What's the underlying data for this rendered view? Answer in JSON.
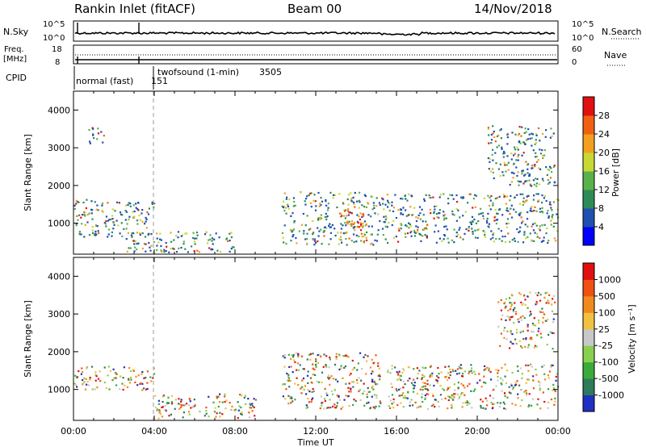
{
  "header": {
    "station": "Rankin Inlet (fitACF)",
    "beam": "Beam 00",
    "date": "14/Nov/2018"
  },
  "nsky_panel": {
    "left_label": "N.Sky",
    "right_label": "N.Search",
    "left_ticks": [
      "10^5",
      "10^0"
    ],
    "right_ticks": [
      "10^5",
      "10^0"
    ]
  },
  "freq_panel": {
    "left_label_1": "Freq.",
    "left_label_2": "[MHz]",
    "left_ticks": [
      "18",
      "8"
    ],
    "right_label": "Nave",
    "right_ticks": [
      "60",
      "0"
    ]
  },
  "cpid_panel": {
    "label": "CPID",
    "modes": [
      {
        "name": "normal (fast)",
        "id": "151",
        "start_hour": 0.0
      },
      {
        "name": "twofsound (1-min)",
        "id": "3505",
        "start_hour": 3.95
      }
    ]
  },
  "chart_data": [
    {
      "type": "heatmap",
      "name": "power",
      "ylabel": "Slant Range [km]",
      "y_ticks": [
        "4000",
        "3000",
        "2000",
        "1000"
      ],
      "ylim": [
        180,
        4500
      ],
      "colorbar_label": "Power [dB]",
      "colorbar_ticks": [
        "28",
        "24",
        "20",
        "16",
        "12",
        "8",
        "4"
      ],
      "colorbar_colors": [
        "#0000ff",
        "#1f4fb0",
        "#2e8b57",
        "#5ab04a",
        "#c8d832",
        "#f2a020",
        "#f06010",
        "#e01010"
      ],
      "scatter_regions": [
        {
          "x0": 0.0,
          "x1": 4.0,
          "y0": 650,
          "y1": 1650
        },
        {
          "x0": 0.7,
          "x1": 1.5,
          "y0": 3050,
          "y1": 3550
        },
        {
          "x0": 2.5,
          "x1": 8.0,
          "y0": 250,
          "y1": 800
        },
        {
          "x0": 10.3,
          "x1": 15.0,
          "y0": 450,
          "y1": 1850
        },
        {
          "x0": 13.0,
          "x1": 14.5,
          "y0": 700,
          "y1": 1300
        },
        {
          "x0": 15.0,
          "x1": 24.0,
          "y0": 500,
          "y1": 1800
        },
        {
          "x0": 20.5,
          "x1": 23.8,
          "y0": 2000,
          "y1": 3600
        }
      ]
    },
    {
      "type": "heatmap",
      "name": "velocity",
      "ylabel": "Slant Range [km]",
      "y_ticks": [
        "4000",
        "3000",
        "2000",
        "1000"
      ],
      "ylim": [
        180,
        4500
      ],
      "colorbar_label": "Velocity [m s⁻¹]",
      "colorbar_ticks": [
        "1000",
        "500",
        "100",
        "25",
        "-25",
        "-100",
        "-500",
        "-1000"
      ],
      "colorbar_colors": [
        "#2030c0",
        "#2e7a5a",
        "#3aaa3a",
        "#8ad050",
        "#c8c8c8",
        "#f0c040",
        "#f08a20",
        "#f05010",
        "#e01010"
      ],
      "scatter_regions": [
        {
          "x0": 0.0,
          "x1": 4.0,
          "y0": 1000,
          "y1": 1650
        },
        {
          "x0": 4.0,
          "x1": 9.0,
          "y0": 250,
          "y1": 900
        },
        {
          "x0": 10.3,
          "x1": 15.2,
          "y0": 500,
          "y1": 2000
        },
        {
          "x0": 15.5,
          "x1": 24.0,
          "y0": 500,
          "y1": 1700
        },
        {
          "x0": 21.0,
          "x1": 23.8,
          "y0": 2100,
          "y1": 3600
        }
      ]
    }
  ],
  "x_axis": {
    "label": "Time UT",
    "ticks": [
      "00:00",
      "04:00",
      "08:00",
      "12:00",
      "16:00",
      "20:00",
      "00:00"
    ],
    "range_hours": [
      0,
      24
    ]
  }
}
